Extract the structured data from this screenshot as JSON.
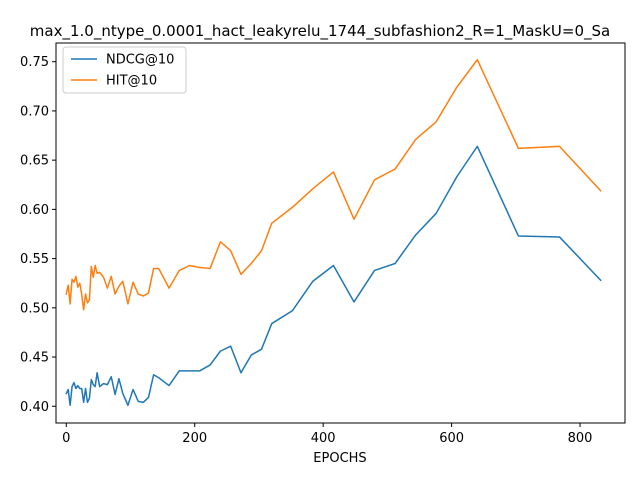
{
  "chart_data": {
    "type": "line",
    "title": "max_1.0_ntype_0.0001_hact_leakyrelu_1744_subfashion2_R=1_MaskU=0_Sa",
    "xlabel": "EPOCHS",
    "ylabel": "",
    "xlim": [
      -16,
      870
    ],
    "ylim": [
      0.383,
      0.769
    ],
    "xticks": [
      0,
      200,
      400,
      600,
      800
    ],
    "yticks": [
      0.4,
      0.45,
      0.5,
      0.55,
      0.6,
      0.65,
      0.7,
      0.75
    ],
    "grid": false,
    "legend_position": "top-left",
    "series": [
      {
        "name": "NDCG@10",
        "color": "#1f77b4",
        "x": [
          0,
          3,
          6,
          9,
          12,
          15,
          18,
          21,
          24,
          27,
          30,
          33,
          36,
          39,
          42,
          45,
          48,
          52,
          58,
          64,
          70,
          76,
          82,
          88,
          96,
          104,
          112,
          120,
          128,
          136,
          144,
          160,
          176,
          192,
          208,
          224,
          240,
          256,
          272,
          288,
          304,
          320,
          352,
          384,
          416,
          448,
          480,
          512,
          544,
          576,
          608,
          640,
          704,
          768,
          832
        ],
        "values": [
          0.413,
          0.417,
          0.401,
          0.42,
          0.424,
          0.418,
          0.421,
          0.418,
          0.418,
          0.404,
          0.418,
          0.404,
          0.408,
          0.427,
          0.422,
          0.42,
          0.434,
          0.42,
          0.423,
          0.422,
          0.43,
          0.412,
          0.428,
          0.413,
          0.401,
          0.417,
          0.405,
          0.404,
          0.409,
          0.432,
          0.429,
          0.421,
          0.436,
          0.436,
          0.436,
          0.442,
          0.456,
          0.461,
          0.434,
          0.452,
          0.458,
          0.484,
          0.497,
          0.527,
          0.543,
          0.506,
          0.538,
          0.545,
          0.574,
          0.596,
          0.633,
          0.664,
          0.573,
          0.572,
          0.528
        ]
      },
      {
        "name": "HIT@10",
        "color": "#ff7f0e",
        "x": [
          0,
          3,
          6,
          9,
          12,
          15,
          18,
          21,
          24,
          27,
          30,
          33,
          36,
          39,
          42,
          45,
          48,
          52,
          58,
          64,
          70,
          76,
          82,
          88,
          96,
          104,
          112,
          120,
          128,
          136,
          144,
          160,
          176,
          192,
          208,
          224,
          240,
          256,
          272,
          288,
          304,
          320,
          352,
          384,
          416,
          448,
          480,
          512,
          544,
          576,
          608,
          640,
          704,
          768,
          832
        ],
        "values": [
          0.514,
          0.523,
          0.504,
          0.529,
          0.526,
          0.532,
          0.521,
          0.525,
          0.514,
          0.498,
          0.514,
          0.505,
          0.508,
          0.542,
          0.531,
          0.543,
          0.535,
          0.536,
          0.531,
          0.52,
          0.532,
          0.514,
          0.522,
          0.527,
          0.504,
          0.526,
          0.514,
          0.512,
          0.515,
          0.54,
          0.54,
          0.52,
          0.538,
          0.543,
          0.541,
          0.54,
          0.567,
          0.558,
          0.534,
          0.545,
          0.558,
          0.586,
          0.602,
          0.621,
          0.638,
          0.59,
          0.63,
          0.641,
          0.671,
          0.689,
          0.724,
          0.752,
          0.662,
          0.664,
          0.619
        ]
      }
    ]
  }
}
